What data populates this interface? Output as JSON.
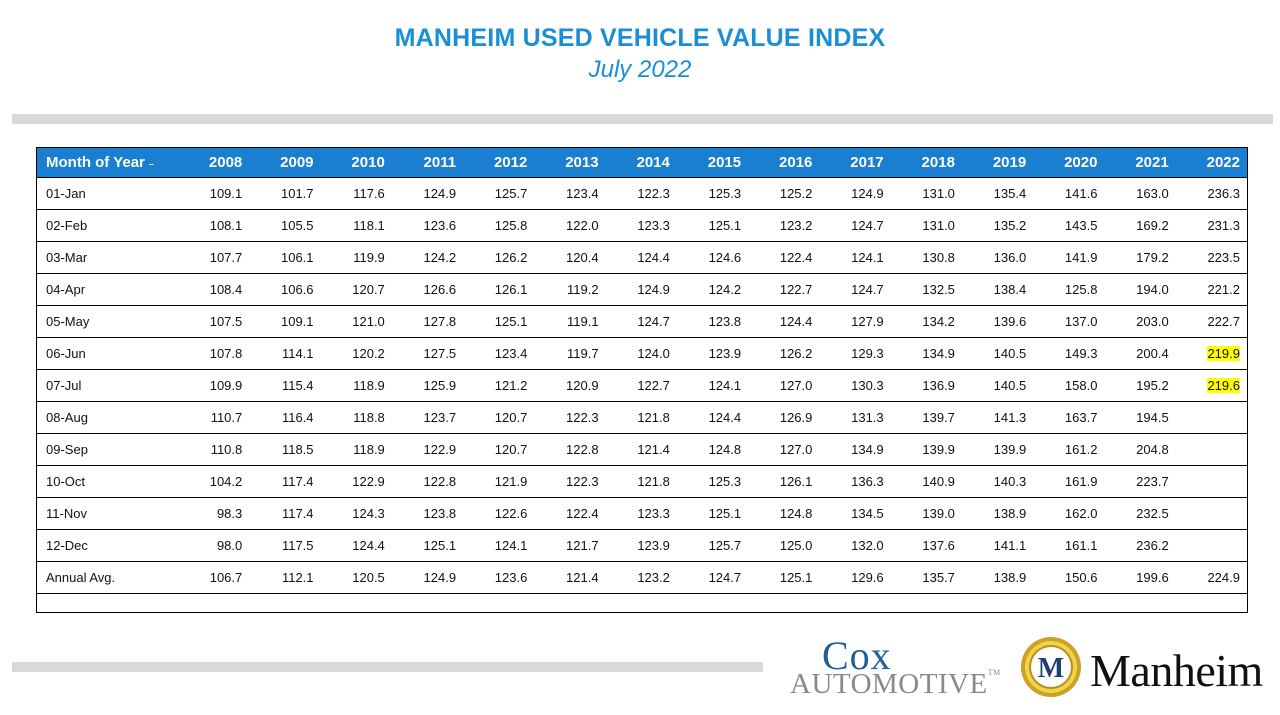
{
  "header": {
    "title": "MANHEIM USED VEHICLE VALUE INDEX",
    "subtitle": "July 2022"
  },
  "logos": {
    "cox_line1": "Cox",
    "cox_line2": "AUTOMOTIVE",
    "cox_tm": "TM",
    "manheim_word": "Manheim",
    "manheim_emblem_letter": "M"
  },
  "colors": {
    "title": "#1a8fd6",
    "header_bg": "#1a7fd0",
    "highlight": "#ffff00",
    "bars": "#d9d9d9"
  },
  "chart_data": {
    "type": "table",
    "title": "MANHEIM USED VEHICLE VALUE INDEX",
    "subtitle": "July 2022",
    "columns": [
      "Month of Year",
      "2008",
      "2009",
      "2010",
      "2011",
      "2012",
      "2013",
      "2014",
      "2015",
      "2016",
      "2017",
      "2018",
      "2019",
      "2020",
      "2021",
      "2022"
    ],
    "rows": [
      [
        "01-Jan",
        "109.1",
        "101.7",
        "117.6",
        "124.9",
        "125.7",
        "123.4",
        "122.3",
        "125.3",
        "125.2",
        "124.9",
        "131.0",
        "135.4",
        "141.6",
        "163.0",
        "236.3"
      ],
      [
        "02-Feb",
        "108.1",
        "105.5",
        "118.1",
        "123.6",
        "125.8",
        "122.0",
        "123.3",
        "125.1",
        "123.2",
        "124.7",
        "131.0",
        "135.2",
        "143.5",
        "169.2",
        "231.3"
      ],
      [
        "03-Mar",
        "107.7",
        "106.1",
        "119.9",
        "124.2",
        "126.2",
        "120.4",
        "124.4",
        "124.6",
        "122.4",
        "124.1",
        "130.8",
        "136.0",
        "141.9",
        "179.2",
        "223.5"
      ],
      [
        "04-Apr",
        "108.4",
        "106.6",
        "120.7",
        "126.6",
        "126.1",
        "119.2",
        "124.9",
        "124.2",
        "122.7",
        "124.7",
        "132.5",
        "138.4",
        "125.8",
        "194.0",
        "221.2"
      ],
      [
        "05-May",
        "107.5",
        "109.1",
        "121.0",
        "127.8",
        "125.1",
        "119.1",
        "124.7",
        "123.8",
        "124.4",
        "127.9",
        "134.2",
        "139.6",
        "137.0",
        "203.0",
        "222.7"
      ],
      [
        "06-Jun",
        "107.8",
        "114.1",
        "120.2",
        "127.5",
        "123.4",
        "119.7",
        "124.0",
        "123.9",
        "126.2",
        "129.3",
        "134.9",
        "140.5",
        "149.3",
        "200.4",
        "219.9"
      ],
      [
        "07-Jul",
        "109.9",
        "115.4",
        "118.9",
        "125.9",
        "121.2",
        "120.9",
        "122.7",
        "124.1",
        "127.0",
        "130.3",
        "136.9",
        "140.5",
        "158.0",
        "195.2",
        "219.6"
      ],
      [
        "08-Aug",
        "110.7",
        "116.4",
        "118.8",
        "123.7",
        "120.7",
        "122.3",
        "121.8",
        "124.4",
        "126.9",
        "131.3",
        "139.7",
        "141.3",
        "163.7",
        "194.5",
        ""
      ],
      [
        "09-Sep",
        "110.8",
        "118.5",
        "118.9",
        "122.9",
        "120.7",
        "122.8",
        "121.4",
        "124.8",
        "127.0",
        "134.9",
        "139.9",
        "139.9",
        "161.2",
        "204.8",
        ""
      ],
      [
        "10-Oct",
        "104.2",
        "117.4",
        "122.9",
        "122.8",
        "121.9",
        "122.3",
        "121.8",
        "125.3",
        "126.1",
        "136.3",
        "140.9",
        "140.3",
        "161.9",
        "223.7",
        ""
      ],
      [
        "11-Nov",
        "98.3",
        "117.4",
        "124.3",
        "123.8",
        "122.6",
        "122.4",
        "123.3",
        "125.1",
        "124.8",
        "134.5",
        "139.0",
        "138.9",
        "162.0",
        "232.5",
        ""
      ],
      [
        "12-Dec",
        "98.0",
        "117.5",
        "124.4",
        "125.1",
        "124.1",
        "121.7",
        "123.9",
        "125.7",
        "125.0",
        "132.0",
        "137.6",
        "141.1",
        "161.1",
        "236.2",
        ""
      ],
      [
        "Annual Avg.",
        "106.7",
        "112.1",
        "120.5",
        "124.9",
        "123.6",
        "121.4",
        "123.2",
        "124.7",
        "125.1",
        "129.6",
        "135.7",
        "138.9",
        "150.6",
        "199.6",
        "224.9"
      ]
    ],
    "highlighted_cells": [
      {
        "row": "06-Jun",
        "column": "2022"
      },
      {
        "row": "07-Jul",
        "column": "2022"
      }
    ],
    "header_icon": "filter-dropdown-icon"
  }
}
